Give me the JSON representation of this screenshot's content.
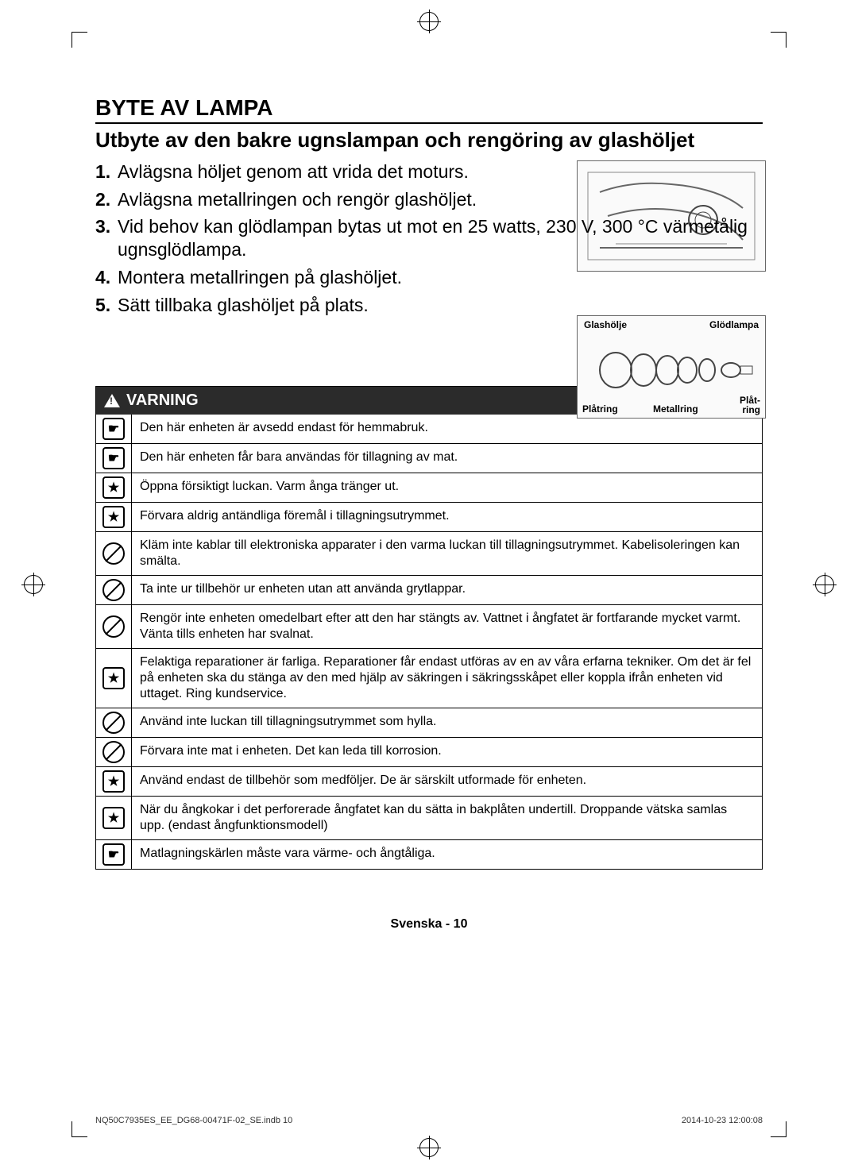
{
  "heading": "BYTE AV LAMPA",
  "subheading": "Utbyte av den bakre ugnslampan och rengöring av glashöljet",
  "steps": [
    "Avlägsna höljet genom att vrida det moturs.",
    "Avlägsna metallringen och rengör glashöljet.",
    "Vid behov kan glödlampan bytas ut mot en 25 watts, 230 V, 300 °C värmetålig ugnsglödlampa.",
    "Montera metallringen på glashöljet.",
    "Sätt tillbaka glashöljet på plats."
  ],
  "diagram2_labels": {
    "top_left": "Glashölje",
    "top_right": "Glödlampa",
    "bottom_left": "Plåtring",
    "bottom_center": "Metallring",
    "bottom_right": "Plåt-\nring"
  },
  "warning_title": "VARNING",
  "warnings": [
    {
      "icon": "note",
      "text": "Den här enheten är avsedd endast för hemmabruk."
    },
    {
      "icon": "note",
      "text": "Den här enheten får bara användas för tillagning av mat."
    },
    {
      "icon": "star",
      "text": "Öppna försiktigt luckan. Varm ånga tränger ut."
    },
    {
      "icon": "star",
      "text": "Förvara aldrig antändliga föremål i tillagningsutrymmet."
    },
    {
      "icon": "prohibit",
      "text": "Kläm inte kablar till elektroniska apparater i den varma luckan till tillagningsutrymmet. Kabelisoleringen kan smälta."
    },
    {
      "icon": "prohibit",
      "text": "Ta inte ur tillbehör ur enheten utan att använda grytlappar."
    },
    {
      "icon": "prohibit",
      "text": "Rengör inte enheten omedelbart efter att den har stängts av. Vattnet i ångfatet är fortfarande mycket varmt. Vänta tills enheten har svalnat."
    },
    {
      "icon": "star",
      "text": "Felaktiga reparationer är farliga. Reparationer får endast utföras av en av våra erfarna tekniker. Om det är fel på enheten ska du stänga av den med hjälp av säkringen i säkringsskåpet eller koppla ifrån enheten vid uttaget. Ring kundservice."
    },
    {
      "icon": "prohibit",
      "text": "Använd inte luckan till tillagningsutrymmet som hylla."
    },
    {
      "icon": "prohibit",
      "text": "Förvara inte mat i enheten. Det kan leda till korrosion."
    },
    {
      "icon": "star",
      "text": "Använd endast de tillbehör som medföljer. De är särskilt utformade för enheten."
    },
    {
      "icon": "star",
      "text": "När du ångkokar i det perforerade ångfatet kan du sätta in bakplåten undertill. Droppande vätska samlas upp. (endast ångfunktionsmodell)"
    },
    {
      "icon": "note",
      "text": "Matlagningskärlen måste vara värme- och ångtåliga."
    }
  ],
  "footer_lang": "Svenska - 10",
  "footer_left": "NQ50C7935ES_EE_DG68-00471F-02_SE.indb   10",
  "footer_right": "2014-10-23   12:00:08"
}
